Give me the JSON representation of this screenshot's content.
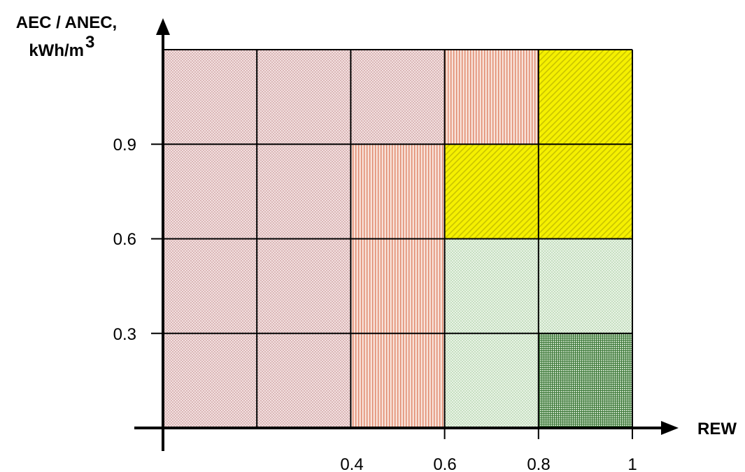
{
  "chart_data": {
    "type": "heatmap",
    "title": "",
    "ylabel_lines": [
      "AEC / ANEC,",
      "kWh/m",
      "3"
    ],
    "xlabel": "REW",
    "x_ticks": [
      "0.4",
      "0.6",
      "0.8",
      "1"
    ],
    "y_ticks": [
      "0.9",
      "0.6",
      "0.3"
    ],
    "grid": true,
    "columns": 5,
    "rows": 4,
    "pattern_colors": {
      "pink": "#d4a9a9",
      "orange": "#e59a7f",
      "yellow": "#f3f000",
      "lightgreen": "#a9cfa2",
      "darkgreen": "#3e7d3c"
    },
    "cells": [
      [
        "pink",
        "pink",
        "pink",
        "orange",
        "yellow"
      ],
      [
        "pink",
        "pink",
        "orange",
        "yellow",
        "yellow"
      ],
      [
        "pink",
        "pink",
        "orange",
        "lightgreen",
        "lightgreen"
      ],
      [
        "pink",
        "pink",
        "orange",
        "lightgreen",
        "darkgreen"
      ]
    ]
  }
}
